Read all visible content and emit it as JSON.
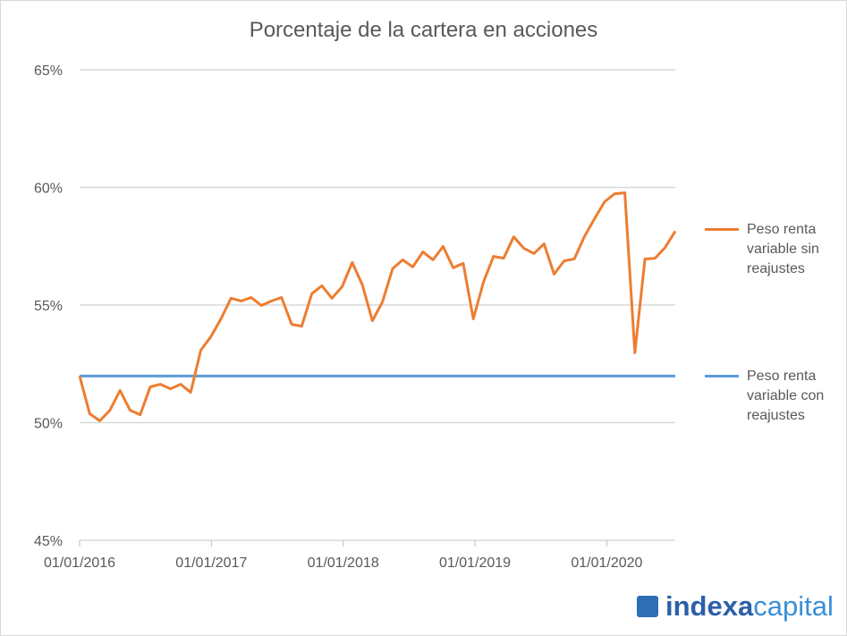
{
  "chart_data": {
    "type": "line",
    "title": "Porcentaje de la cartera en acciones",
    "xlabel": "",
    "ylabel": "",
    "ylim": [
      45,
      65
    ],
    "yticks": [
      "45%",
      "50%",
      "55%",
      "60%",
      "65%"
    ],
    "ytick_values": [
      45,
      50,
      55,
      60,
      65
    ],
    "xticks": [
      "01/01/2016",
      "01/01/2017",
      "01/01/2018",
      "01/01/2019",
      "01/01/2020"
    ],
    "xtick_values": [
      2016,
      2017,
      2018,
      2019,
      2020
    ],
    "xlim": [
      2016,
      2020.52
    ],
    "grid": true,
    "legend_position": "right",
    "series": [
      {
        "name": "Peso renta variable sin reajustes",
        "color": "#ed7d31",
        "values": [
          51.98,
          50.38,
          50.08,
          50.53,
          51.37,
          50.53,
          50.34,
          51.52,
          51.63,
          51.44,
          51.63,
          51.29,
          53.08,
          53.65,
          54.41,
          55.29,
          55.17,
          55.32,
          54.98,
          55.17,
          55.32,
          54.18,
          54.1,
          55.48,
          55.82,
          55.29,
          55.78,
          56.81,
          55.86,
          54.33,
          55.13,
          56.54,
          56.92,
          56.62,
          57.26,
          56.92,
          57.49,
          56.58,
          56.77,
          54.41,
          55.97,
          57.07,
          56.99,
          57.9,
          57.41,
          57.19,
          57.6,
          56.31,
          56.88,
          56.96,
          57.91,
          58.67,
          59.39,
          59.73,
          59.77,
          52.97,
          56.96,
          56.99,
          57.45,
          58.14
        ]
      },
      {
        "name": "Peso renta variable con reajustes",
        "color": "#5b9bd5",
        "constant": 51.98
      }
    ]
  },
  "legend": {
    "line1": [
      "Peso renta",
      "variable sin",
      "reajustes"
    ],
    "line2": [
      "Peso renta",
      "variable con",
      "reajustes"
    ]
  },
  "logo": {
    "bold": "indexa",
    "light": "capital"
  }
}
